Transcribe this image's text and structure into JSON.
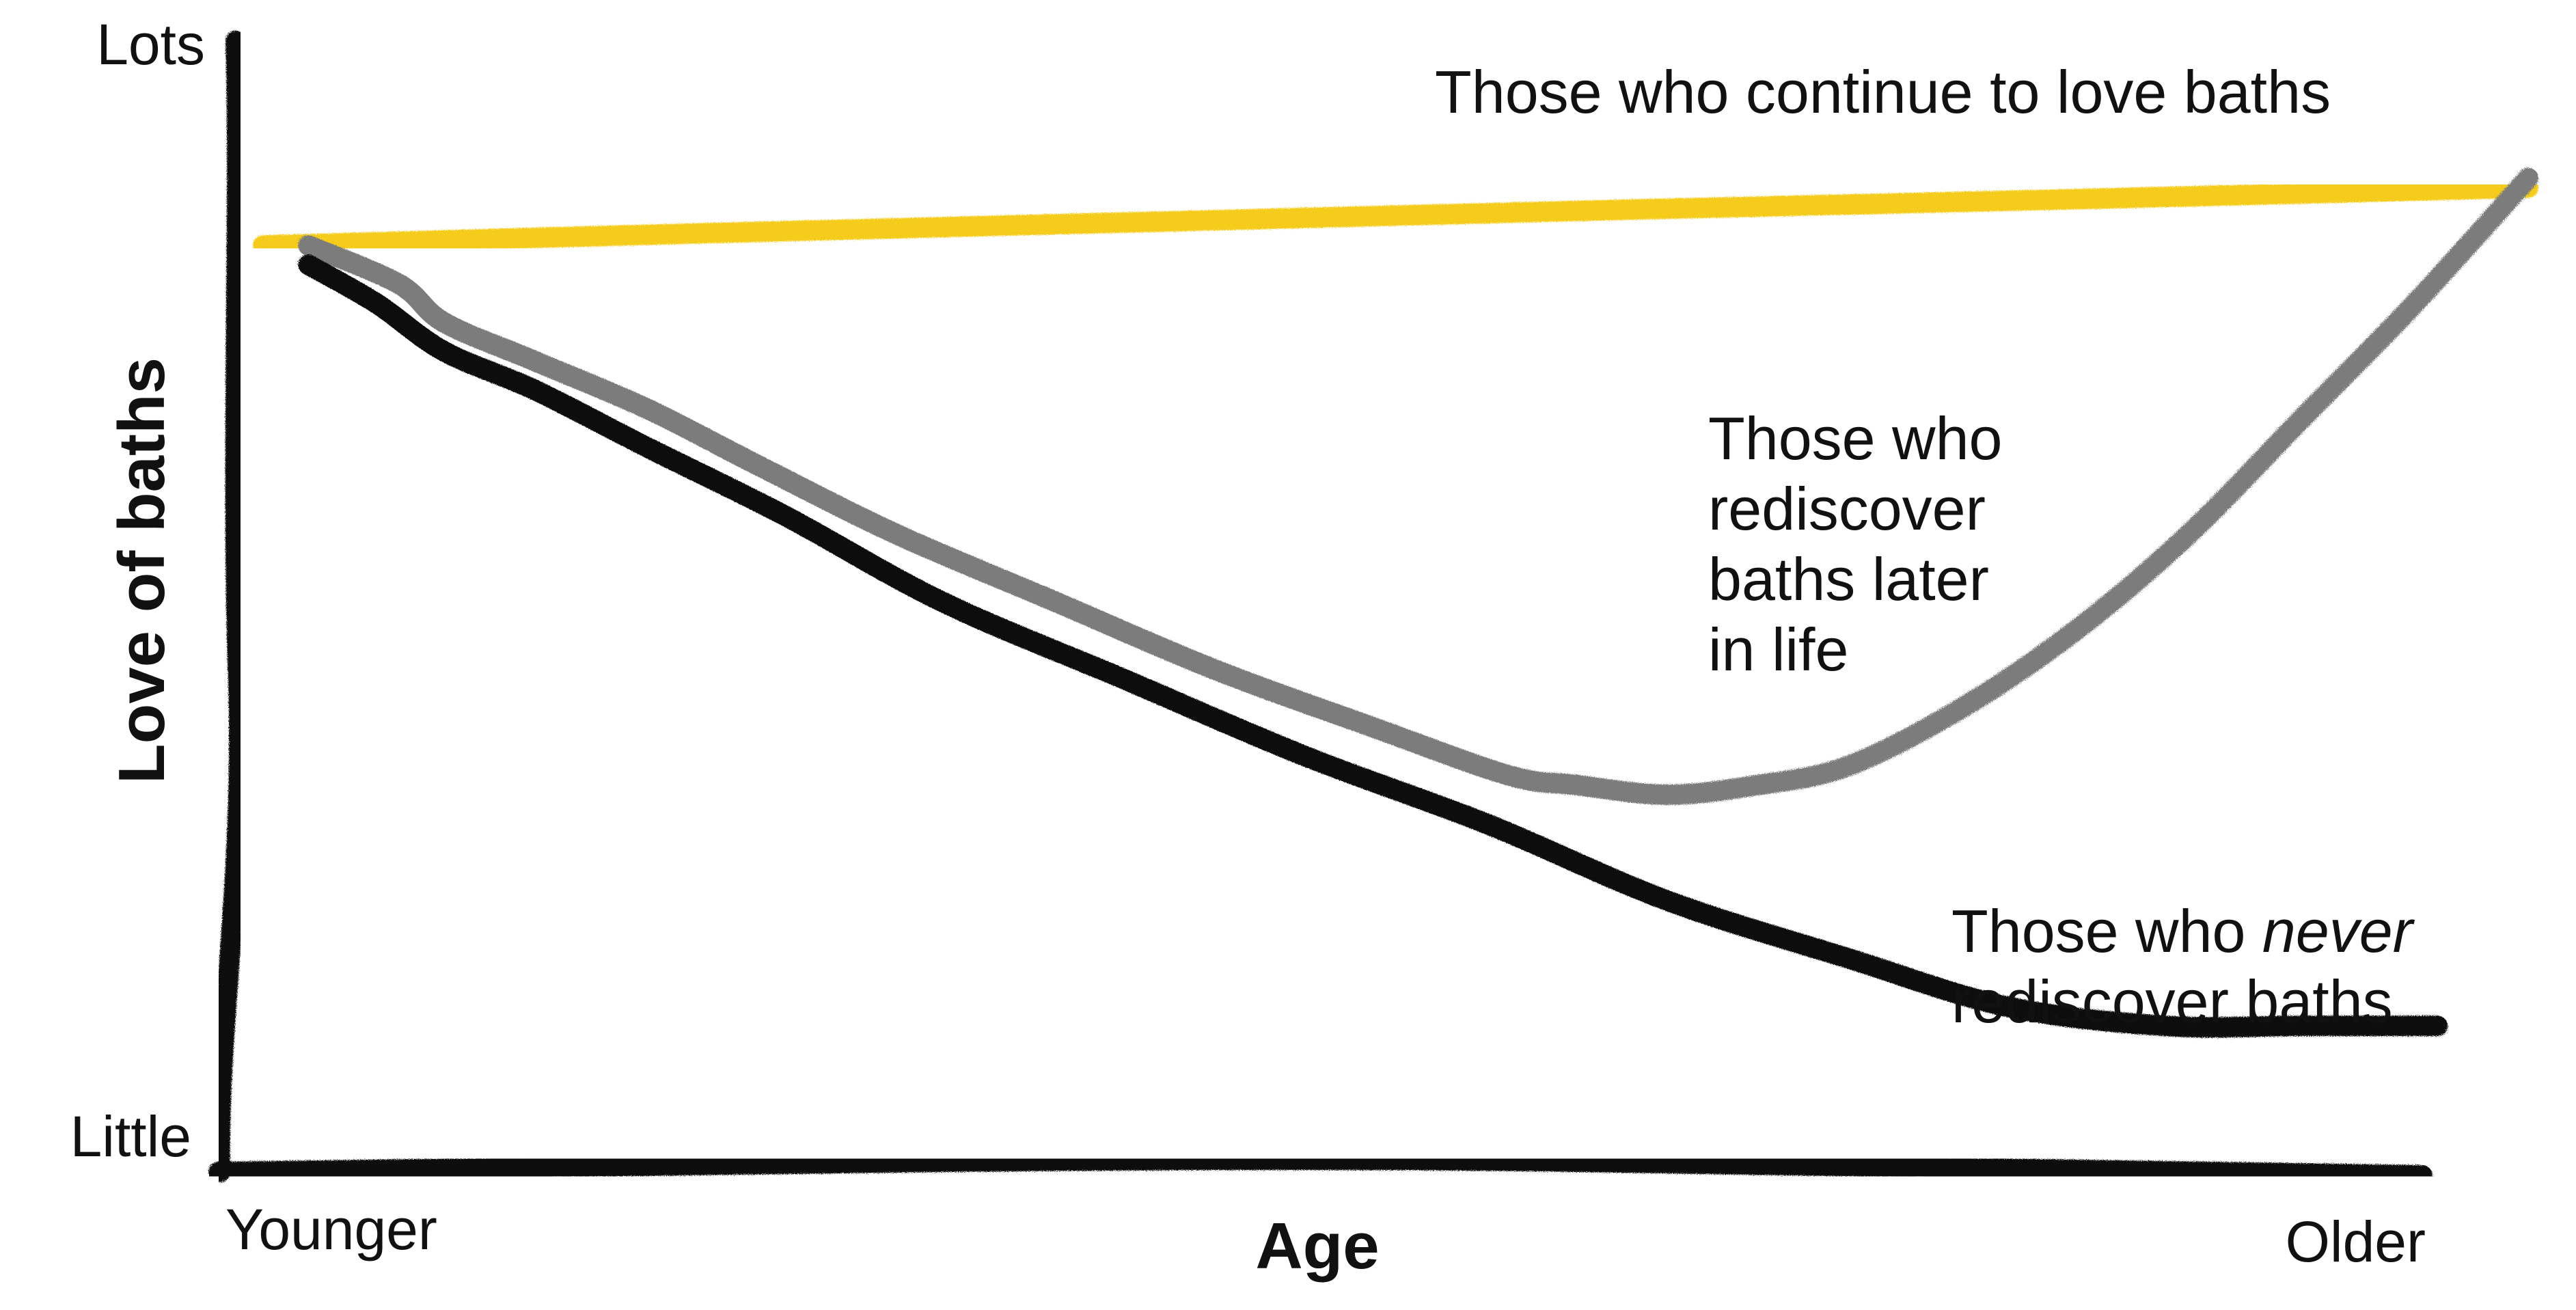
{
  "chart_data": {
    "type": "line",
    "title": "",
    "xlabel": "Age",
    "ylabel": "Love of baths",
    "x_tick_labels": [
      "Younger",
      "Older"
    ],
    "y_tick_labels": [
      "Little",
      "Lots"
    ],
    "xlim": [
      0,
      100
    ],
    "ylim": [
      0,
      100
    ],
    "grid": false,
    "legend": "none (series labeled by direct annotations)",
    "colors": {
      "axes": "#0a0a0a",
      "continue": "#f5cc1d",
      "rediscover": "#7b7b7b",
      "never": "#0f0f0f"
    },
    "series": [
      {
        "key": "continue",
        "x": [
          0,
          20,
          40,
          60,
          80,
          100
        ],
        "y": [
          88,
          89.3,
          90.5,
          91.7,
          92.8,
          94
        ]
      },
      {
        "key": "rediscover",
        "x": [
          2,
          6,
          8,
          12,
          17,
          22,
          28,
          35,
          42,
          49,
          55,
          58,
          62,
          66,
          70,
          75,
          80,
          85,
          90,
          95,
          100
        ],
        "y": [
          88,
          84,
          80,
          76,
          71,
          65,
          58,
          51,
          44,
          38,
          33,
          32,
          31,
          32,
          34,
          40,
          48,
          58,
          70,
          82,
          95
        ]
      },
      {
        "key": "never",
        "x": [
          2,
          5,
          8,
          12,
          17,
          23,
          30,
          38,
          46,
          54,
          62,
          70,
          77,
          84,
          90,
          96
        ],
        "y": [
          86,
          82,
          77,
          73,
          67,
          60,
          51,
          43,
          35,
          28,
          20,
          14,
          9,
          7,
          7,
          7
        ]
      }
    ],
    "annotations": [
      {
        "key": "continue",
        "lines": [
          "Those who continue to love baths"
        ]
      },
      {
        "key": "rediscover",
        "lines": [
          "Those who",
          "rediscover",
          "baths later",
          "in life"
        ]
      },
      {
        "key": "never",
        "lines": [
          "Those who ",
          "never",
          "rediscover baths"
        ]
      }
    ]
  }
}
